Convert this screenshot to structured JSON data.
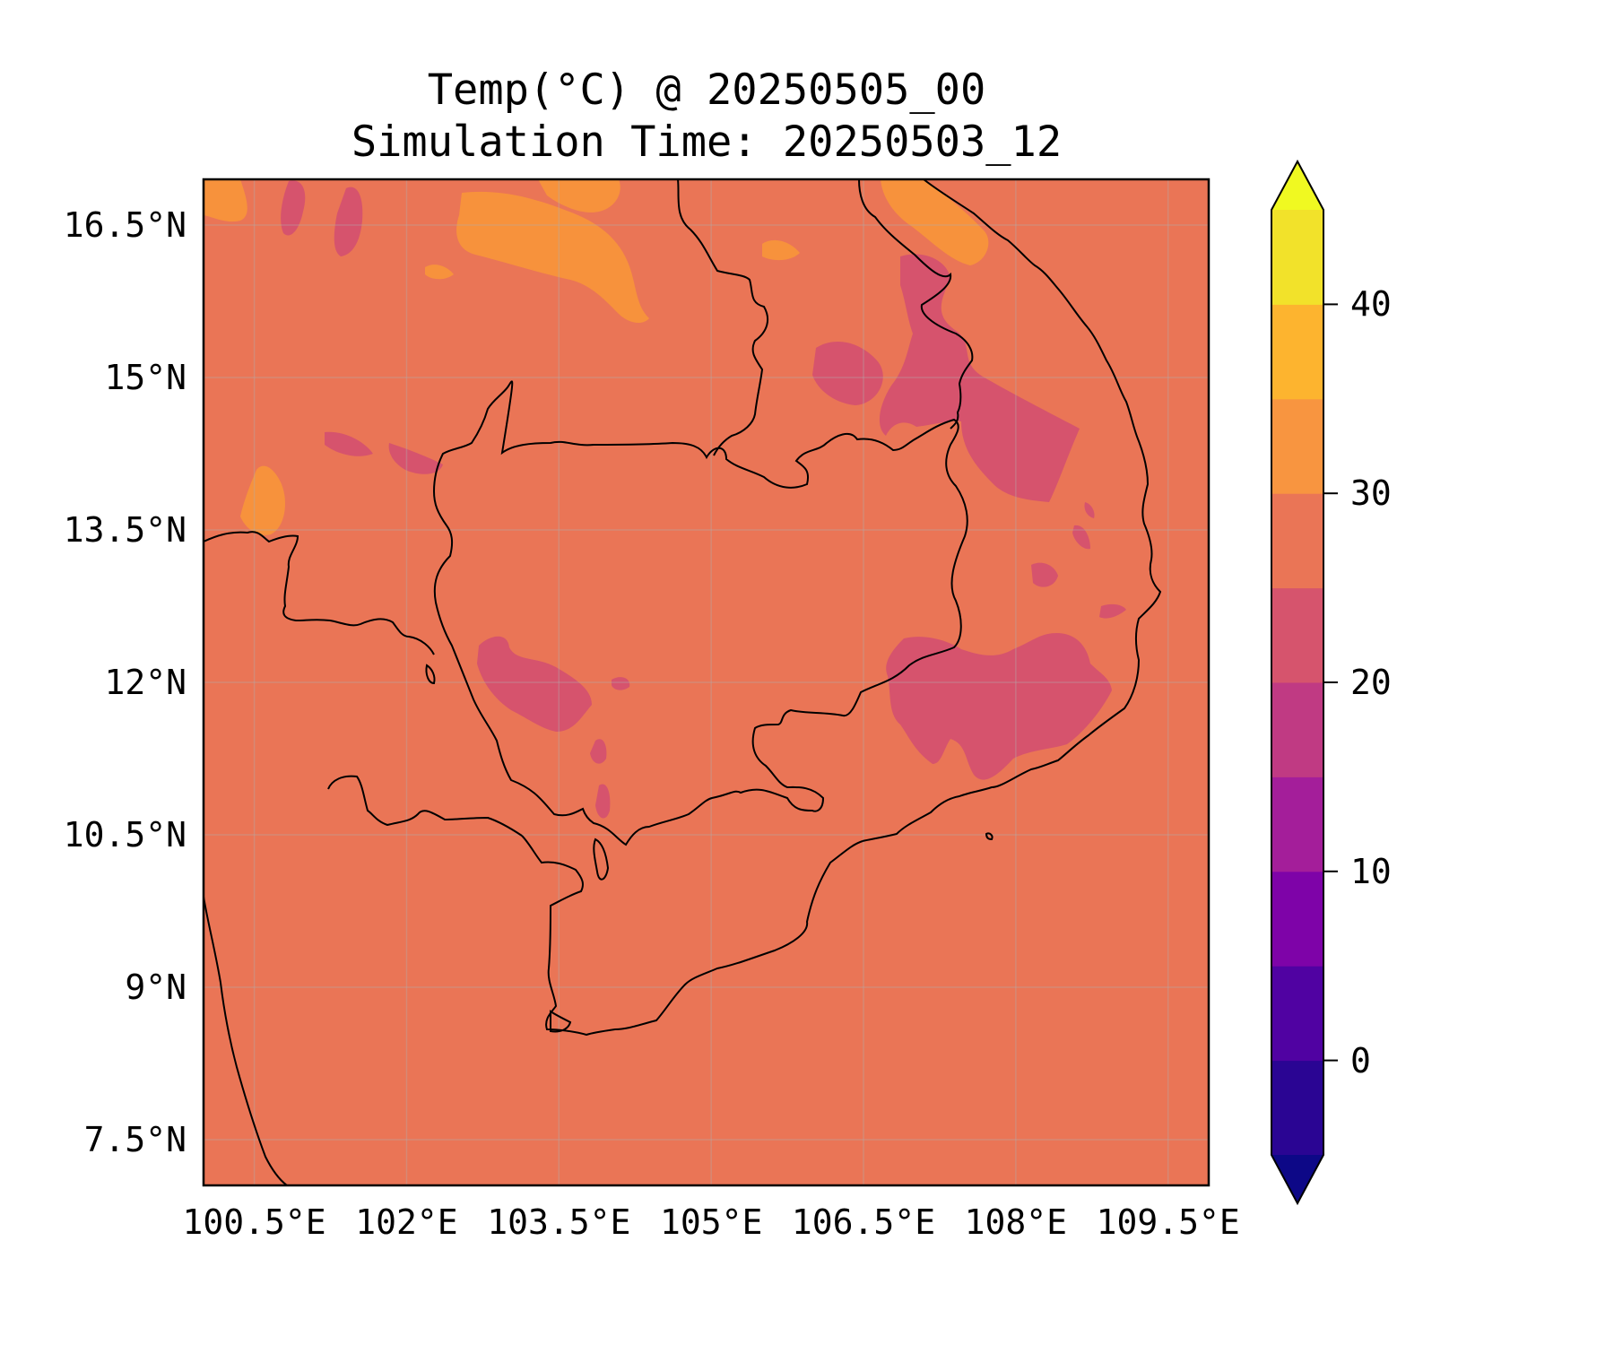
{
  "title": "Temp(°C) @ 20250505_00",
  "subtitle": "Simulation Time: 20250503_12",
  "map": {
    "extent": {
      "lon_min": 100.0,
      "lon_max": 109.9,
      "lat_min": 7.05,
      "lat_max": 16.95
    },
    "background_band": "25–30 °C",
    "gridlines": true,
    "colors": {
      "background": "#ea7556",
      "warm": "#f7923c",
      "cool": "#d6536d",
      "cooler": "#cc4778",
      "coastline": "#000000"
    }
  },
  "axes": {
    "lat_ticks": [
      {
        "value": 16.5,
        "label": "16.5°N"
      },
      {
        "value": 15.0,
        "label": "15°N"
      },
      {
        "value": 13.5,
        "label": "13.5°N"
      },
      {
        "value": 12.0,
        "label": "12°N"
      },
      {
        "value": 10.5,
        "label": "10.5°N"
      },
      {
        "value": 9.0,
        "label": "9°N"
      },
      {
        "value": 7.5,
        "label": "7.5°N"
      }
    ],
    "lon_ticks": [
      {
        "value": 100.5,
        "label": "100.5°E"
      },
      {
        "value": 102.0,
        "label": "102°E"
      },
      {
        "value": 103.5,
        "label": "103.5°E"
      },
      {
        "value": 105.0,
        "label": "105°E"
      },
      {
        "value": 106.5,
        "label": "106.5°E"
      },
      {
        "value": 108.0,
        "label": "108°E"
      },
      {
        "value": 109.5,
        "label": "109.5°E"
      }
    ]
  },
  "colorbar": {
    "min": -5,
    "max": 45,
    "extend": "both",
    "under_color": "#0d0887",
    "over_color": "#f0f921",
    "bins": [
      {
        "from": -5,
        "to": 0,
        "color": "#2a0593"
      },
      {
        "from": 0,
        "to": 5,
        "color": "#5002a2"
      },
      {
        "from": 5,
        "to": 10,
        "color": "#7e03a8"
      },
      {
        "from": 10,
        "to": 15,
        "color": "#a41e9a"
      },
      {
        "from": 15,
        "to": 20,
        "color": "#c03a83"
      },
      {
        "from": 20,
        "to": 25,
        "color": "#d6546d"
      },
      {
        "from": 25,
        "to": 30,
        "color": "#ea7556"
      },
      {
        "from": 30,
        "to": 35,
        "color": "#f89540"
      },
      {
        "from": 35,
        "to": 40,
        "color": "#fdb42f"
      },
      {
        "from": 40,
        "to": 45,
        "color": "#f2e22a"
      }
    ],
    "ticks": [
      {
        "value": 0,
        "label": "0"
      },
      {
        "value": 10,
        "label": "10"
      },
      {
        "value": 20,
        "label": "20"
      },
      {
        "value": 30,
        "label": "30"
      },
      {
        "value": 40,
        "label": "40"
      }
    ]
  }
}
